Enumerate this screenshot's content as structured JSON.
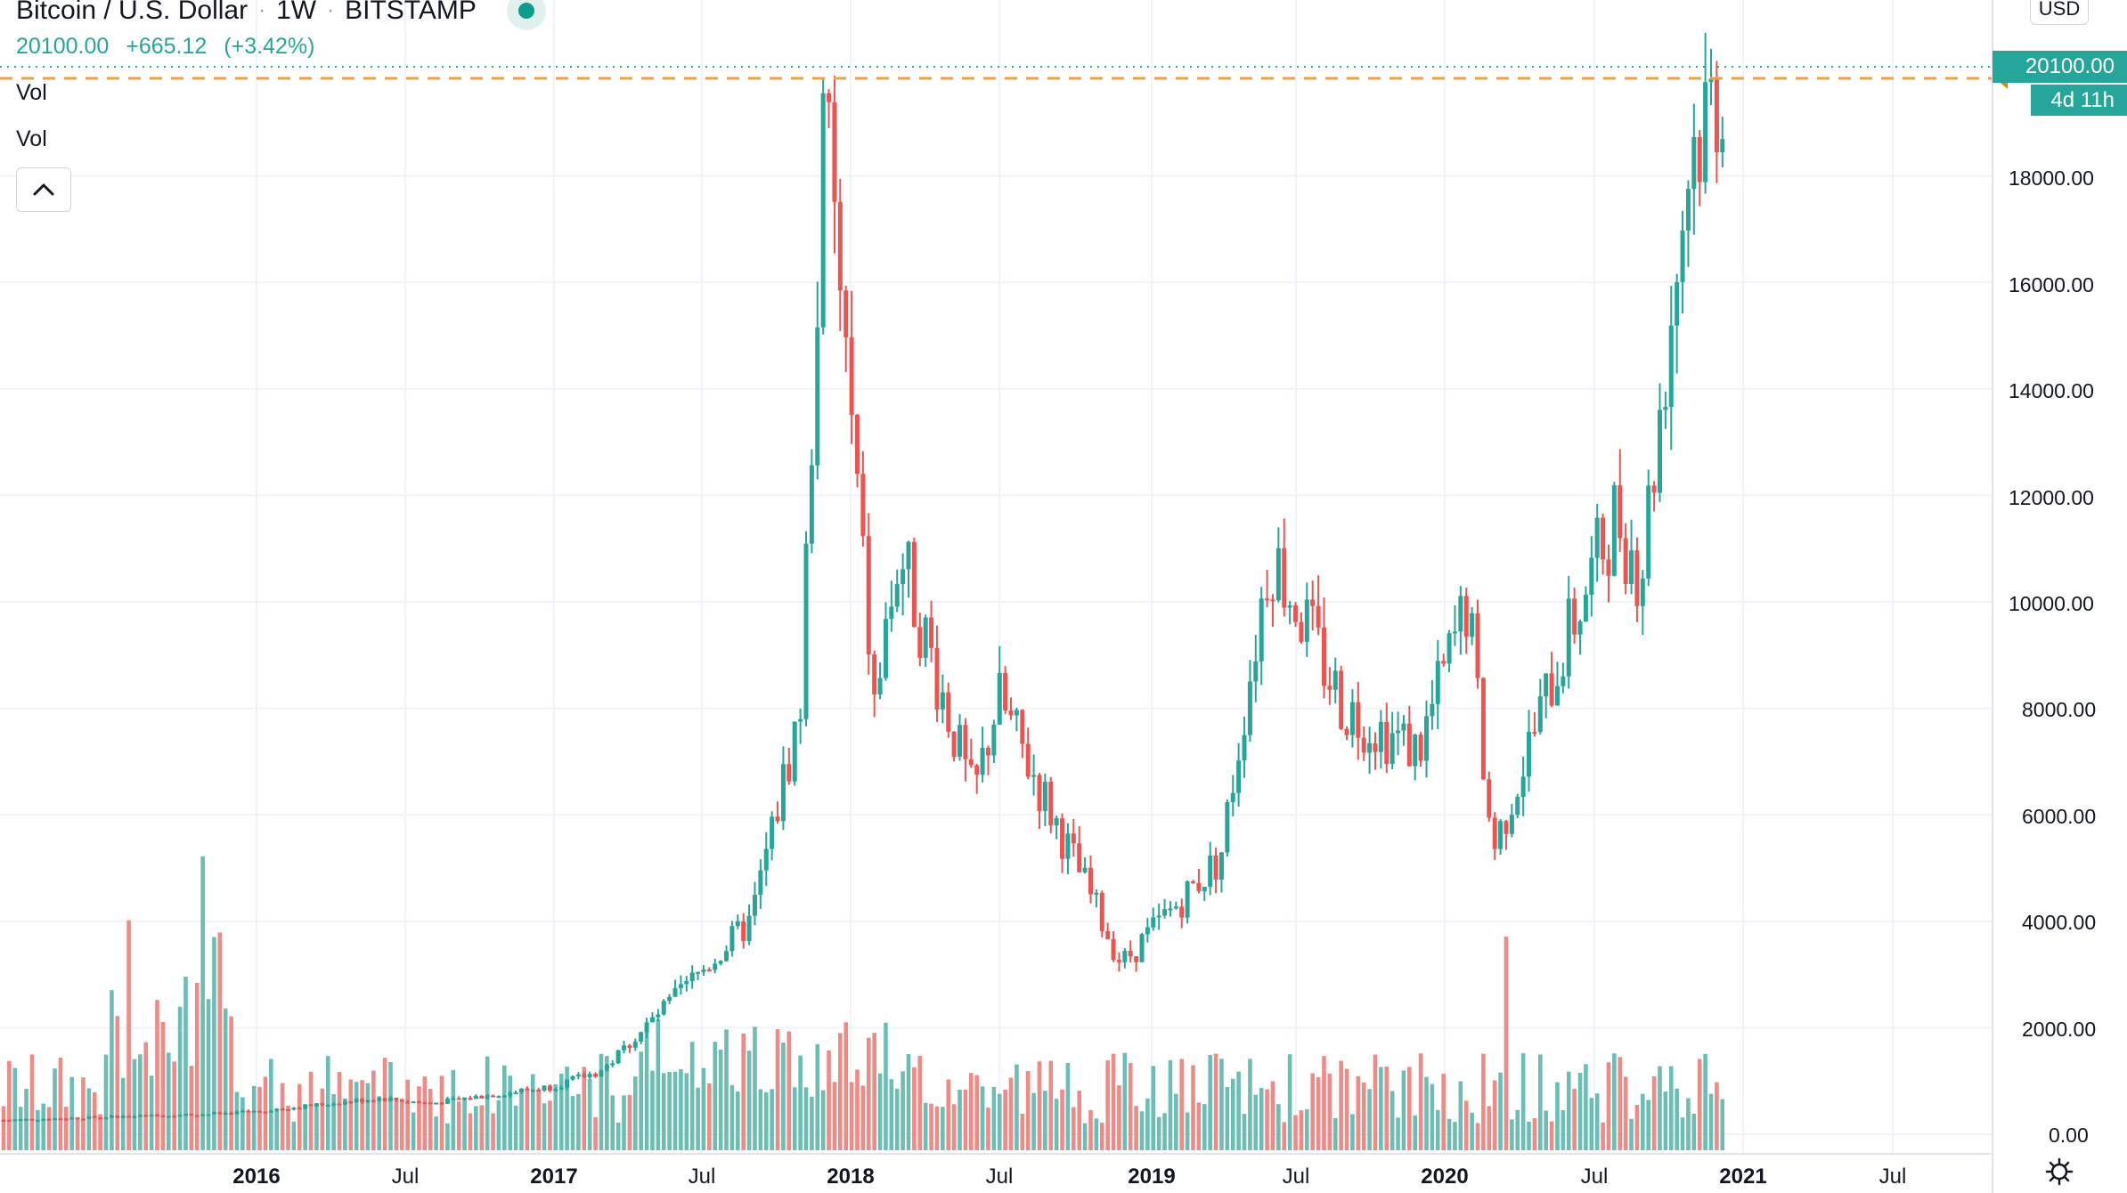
{
  "header": {
    "symbol": "Bitcoin / U.S. Dollar",
    "interval": "1W",
    "exchange": "BITSTAMP",
    "separator": "·",
    "live_status_icon": "market-open-dot",
    "last_price": "20100.00",
    "change": "+665.12",
    "change_pct": "(+3.42%)"
  },
  "studies": [
    {
      "label": "Vol"
    },
    {
      "label": "Vol"
    }
  ],
  "controls": {
    "collapse_icon": "chevron-up-icon",
    "currency_button": "USD",
    "settings_icon": "gear-icon"
  },
  "price_axis": {
    "labels": [
      "18000.00",
      "16000.00",
      "14000.00",
      "12000.00",
      "10000.00",
      "8000.00",
      "6000.00",
      "4000.00",
      "2000.00",
      "0.00"
    ],
    "last_price_tag": "20100.00",
    "countdown_tag": "4d 11h"
  },
  "time_axis": {
    "labels": [
      {
        "text": "2016",
        "year": true
      },
      {
        "text": "Jul",
        "year": false
      },
      {
        "text": "2017",
        "year": true
      },
      {
        "text": "Jul",
        "year": false
      },
      {
        "text": "2018",
        "year": true
      },
      {
        "text": "Jul",
        "year": false
      },
      {
        "text": "2019",
        "year": true
      },
      {
        "text": "Jul",
        "year": false
      },
      {
        "text": "2020",
        "year": true
      },
      {
        "text": "Jul",
        "year": false
      },
      {
        "text": "2021",
        "year": true
      },
      {
        "text": "Jul",
        "year": false
      }
    ]
  },
  "colors": {
    "up": "#26a69a",
    "down": "#ef5350",
    "vol_up": "#6cbeb5",
    "vol_down": "#ef8a86",
    "grid": "#f0f3fa",
    "last_price_line": "#26a69a",
    "high_line": "#f0a04b",
    "orange_marker": "#f57c00"
  },
  "chart_data": {
    "type": "candlestick",
    "title": "Bitcoin / U.S. Dollar · 1W · BITSTAMP",
    "xlabel": "",
    "ylabel": "USD",
    "ylim": [
      0,
      20100
    ],
    "grid": true,
    "legend_position": "top-left",
    "last_price": 20100.0,
    "change": 665.12,
    "change_pct": 3.42,
    "high_line": 19900,
    "time_ticks": [
      "2016",
      "Jul",
      "2017",
      "Jul",
      "2018",
      "Jul",
      "2019",
      "Jul",
      "2020",
      "Jul",
      "2021",
      "Jul"
    ],
    "price_ticks": [
      0,
      2000,
      4000,
      6000,
      8000,
      10000,
      12000,
      14000,
      16000,
      18000
    ],
    "weekly_close_keypoints": [
      {
        "date": "2015-03",
        "close": 270
      },
      {
        "date": "2015-11",
        "close": 380
      },
      {
        "date": "2016-01",
        "close": 430
      },
      {
        "date": "2016-06",
        "close": 680
      },
      {
        "date": "2016-08",
        "close": 580
      },
      {
        "date": "2017-01",
        "close": 900
      },
      {
        "date": "2017-03",
        "close": 1200
      },
      {
        "date": "2017-06",
        "close": 2600
      },
      {
        "date": "2017-09",
        "close": 4000
      },
      {
        "date": "2017-11",
        "close": 8000
      },
      {
        "date": "2017-12",
        "close": 19300
      },
      {
        "date": "2018-02",
        "close": 8000
      },
      {
        "date": "2018-03",
        "close": 11000
      },
      {
        "date": "2018-06",
        "close": 6300
      },
      {
        "date": "2018-07",
        "close": 8200
      },
      {
        "date": "2018-11",
        "close": 4200
      },
      {
        "date": "2018-12",
        "close": 3200
      },
      {
        "date": "2019-04",
        "close": 5200
      },
      {
        "date": "2019-06",
        "close": 11000
      },
      {
        "date": "2019-09",
        "close": 8000
      },
      {
        "date": "2019-12",
        "close": 7200
      },
      {
        "date": "2020-02",
        "close": 10000
      },
      {
        "date": "2020-03",
        "close": 5300
      },
      {
        "date": "2020-06",
        "close": 9300
      },
      {
        "date": "2020-08",
        "close": 11700
      },
      {
        "date": "2020-09",
        "close": 10500
      },
      {
        "date": "2020-11",
        "close": 18500
      },
      {
        "date": "2020-12",
        "close": 20100
      }
    ],
    "volume_axis": {
      "ticks": [
        0,
        2000
      ],
      "peak_volume_date": "2015-11",
      "peak_volume": 5200
    }
  }
}
